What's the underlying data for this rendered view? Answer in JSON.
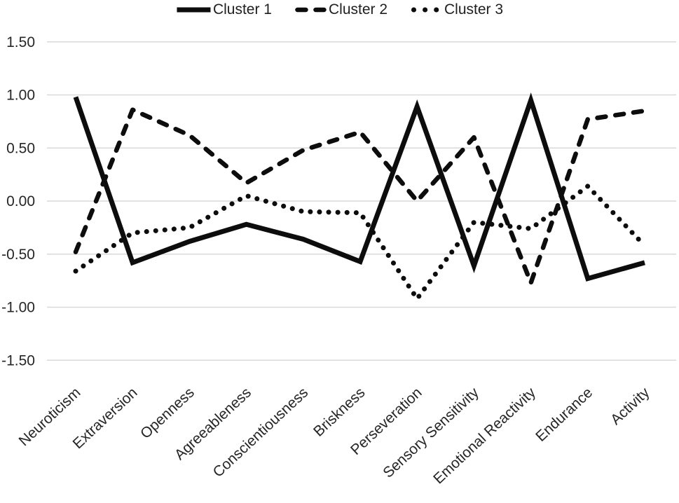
{
  "figure": {
    "background": "#ffffff"
  },
  "colors": {
    "line": "#0d0d0d",
    "grid": "#d9d9d9",
    "text": "#262626"
  },
  "chart_data": {
    "type": "line",
    "title": "",
    "xlabel": "",
    "ylabel": "",
    "grid": "horizontal",
    "legend_position": "top-center",
    "categories": [
      "Neuroticism",
      "Extraversion",
      "Openness",
      "Agreeableness",
      "Conscientiousness",
      "Briskness",
      "Perseveration",
      "Sensory Sensitivity",
      "Emotional Reactivity",
      "Endurance",
      "Activity"
    ],
    "series": [
      {
        "name": "Cluster 1",
        "style": "solid",
        "values": [
          0.98,
          -0.58,
          -0.38,
          -0.22,
          -0.36,
          -0.57,
          0.89,
          -0.61,
          0.95,
          -0.73,
          -0.58
        ]
      },
      {
        "name": "Cluster 2",
        "style": "dashed",
        "values": [
          -0.48,
          0.86,
          0.62,
          0.17,
          0.48,
          0.65,
          0.0,
          0.6,
          -0.77,
          0.77,
          0.85
        ]
      },
      {
        "name": "Cluster 3",
        "style": "dotted",
        "values": [
          -0.66,
          -0.3,
          -0.25,
          0.05,
          -0.1,
          -0.11,
          -0.92,
          -0.2,
          -0.26,
          0.14,
          -0.42
        ]
      }
    ],
    "y_axis": {
      "min": -1.5,
      "max": 1.5,
      "step": 0.5,
      "tick_labels": [
        "1.50",
        "1.00",
        "0.50",
        "0.00",
        "-0.50",
        "-1.00",
        "-1.50"
      ]
    }
  }
}
